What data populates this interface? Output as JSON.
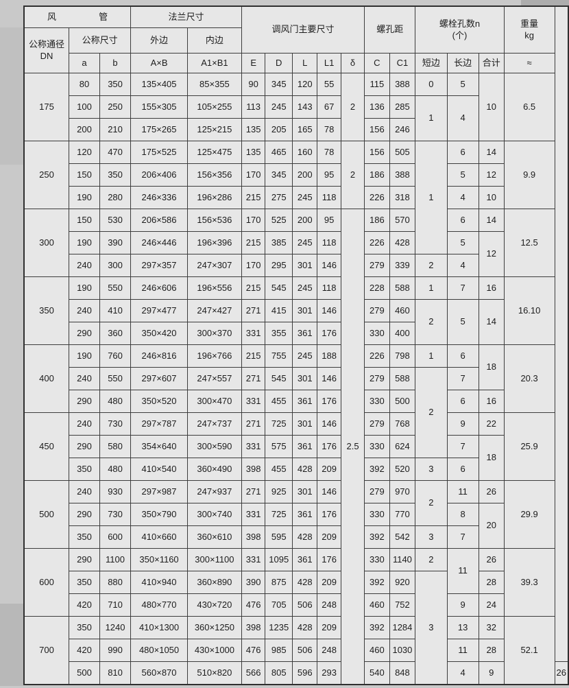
{
  "colors": {
    "page_bg": "#c9c9c9",
    "table_bg": "#e7e7e7",
    "line": "#3c3c3c",
    "text": "#1c1c1c"
  },
  "header": {
    "duct_left": "风",
    "duct_right": "管",
    "flange": "法兰尺寸",
    "damper": "调风门主要尺寸",
    "hole_pitch": "螺孔距",
    "bolt_line1": "螺栓孔数n",
    "bolt_line2": "(个)",
    "weight_line1": "重量",
    "weight_line2": "kg",
    "weight_approx": "≈",
    "dn_line1": "公称通径",
    "dn_line2": "DN",
    "nominal": "公称尺寸",
    "outer": "外边",
    "inner": "内边",
    "col_a": "a",
    "col_b": "b",
    "col_axb": "A×B",
    "col_a1b1": "A1×B1",
    "col_e": "E",
    "col_d": "D",
    "col_l": "L",
    "col_l1": "L1",
    "col_delta": "δ",
    "col_c": "C",
    "col_c1": "C1",
    "col_short": "短边",
    "col_long": "长边",
    "col_total": "合计"
  },
  "groups": [
    {
      "dn": "175",
      "w": "6.5",
      "rows": [
        {
          "a": "80",
          "b": "350",
          "axb": "135×405",
          "a1b1": "85×355",
          "e": "90",
          "d": "345",
          "l": "120",
          "l1": "55",
          "delta": {
            "t": "2",
            "rs": 3
          },
          "c": "115",
          "c1": "388",
          "s": "0",
          "lg": "5",
          "tot": {
            "t": "10",
            "rs": 3
          }
        },
        {
          "a": "100",
          "b": "250",
          "axb": "155×305",
          "a1b1": "105×255",
          "e": "113",
          "d": "245",
          "l": "143",
          "l1": "67",
          "c": "136",
          "c1": "285",
          "s": {
            "t": "1",
            "rs": 2
          },
          "lg": {
            "t": "4",
            "rs": 2
          }
        },
        {
          "a": "200",
          "b": "210",
          "axb": "175×265",
          "a1b1": "125×215",
          "e": "135",
          "d": "205",
          "l": "165",
          "l1": "78",
          "c": "156",
          "c1": "246"
        }
      ]
    },
    {
      "dn": "250",
      "w": "9.9",
      "rows": [
        {
          "a": "120",
          "b": "470",
          "axb": "175×525",
          "a1b1": "125×475",
          "e": "135",
          "d": "465",
          "l": "160",
          "l1": "78",
          "delta": {
            "t": "2",
            "rs": 3
          },
          "c": "156",
          "c1": "505",
          "s": {
            "t": "1",
            "rs": 5
          },
          "lg": "6",
          "tot": "14"
        },
        {
          "a": "150",
          "b": "350",
          "axb": "206×406",
          "a1b1": "156×356",
          "e": "170",
          "d": "345",
          "l": "200",
          "l1": "95",
          "c": "186",
          "c1": "388",
          "lg": "5",
          "tot": "12"
        },
        {
          "a": "190",
          "b": "280",
          "axb": "246×336",
          "a1b1": "196×286",
          "e": "215",
          "d": "275",
          "l": "245",
          "l1": "118",
          "c": "226",
          "c1": "318",
          "lg": "4",
          "tot": "10"
        }
      ]
    },
    {
      "dn": "300",
      "w": "12.5",
      "rows": [
        {
          "a": "150",
          "b": "530",
          "axb": "206×586",
          "a1b1": "156×536",
          "e": "170",
          "d": "525",
          "l": "200",
          "l1": "95",
          "delta": {
            "t": "2.5",
            "rs": 21
          },
          "c": "186",
          "c1": "570",
          "lg": "6",
          "tot": "14"
        },
        {
          "a": "190",
          "b": "390",
          "axb": "246×446",
          "a1b1": "196×396",
          "e": "215",
          "d": "385",
          "l": "245",
          "l1": "118",
          "c": "226",
          "c1": "428",
          "lg": "5",
          "tot": {
            "t": "12",
            "rs": 2
          }
        },
        {
          "a": "240",
          "b": "300",
          "axb": "297×357",
          "a1b1": "247×307",
          "e": "170",
          "d": "295",
          "l": "301",
          "l1": "146",
          "c": "279",
          "c1": "339",
          "s": "2",
          "lg": "4"
        }
      ]
    },
    {
      "dn": "350",
      "w": "16.10",
      "rows": [
        {
          "a": "190",
          "b": "550",
          "axb": "246×606",
          "a1b1": "196×556",
          "e": "215",
          "d": "545",
          "l": "245",
          "l1": "118",
          "c": "228",
          "c1": "588",
          "s": "1",
          "lg": "7",
          "tot": "16"
        },
        {
          "a": "240",
          "b": "410",
          "axb": "297×477",
          "a1b1": "247×427",
          "e": "271",
          "d": "415",
          "l": "301",
          "l1": "146",
          "c": "279",
          "c1": "460",
          "s": {
            "t": "2",
            "rs": 2
          },
          "lg": {
            "t": "5",
            "rs": 2
          },
          "tot": {
            "t": "14",
            "rs": 2
          }
        },
        {
          "a": "290",
          "b": "360",
          "axb": "350×420",
          "a1b1": "300×370",
          "e": "331",
          "d": "355",
          "l": "361",
          "l1": "176",
          "c": "330",
          "c1": "400"
        }
      ]
    },
    {
      "dn": "400",
      "w": "20.3",
      "rows": [
        {
          "a": "190",
          "b": "760",
          "axb": "246×816",
          "a1b1": "196×766",
          "e": "215",
          "d": "755",
          "l": "245",
          "l1": "188",
          "c": "226",
          "c1": "798",
          "s": "1",
          "lg": "6",
          "tot": {
            "t": "18",
            "rs": 2
          }
        },
        {
          "a": "240",
          "b": "550",
          "axb": "297×607",
          "a1b1": "247×557",
          "e": "271",
          "d": "545",
          "l": "301",
          "l1": "146",
          "c": "279",
          "c1": "588",
          "s": {
            "t": "2",
            "rs": 4
          },
          "lg": "7"
        },
        {
          "a": "290",
          "b": "480",
          "axb": "350×520",
          "a1b1": "300×470",
          "e": "331",
          "d": "455",
          "l": "361",
          "l1": "176",
          "c": "330",
          "c1": "500",
          "lg": "6",
          "tot": "16"
        }
      ]
    },
    {
      "dn": "450",
      "w": "25.9",
      "rows": [
        {
          "a": "240",
          "b": "730",
          "axb": "297×787",
          "a1b1": "247×737",
          "e": "271",
          "d": "725",
          "l": "301",
          "l1": "146",
          "c": "279",
          "c1": "768",
          "lg": "9",
          "tot": "22"
        },
        {
          "a": "290",
          "b": "580",
          "axb": "354×640",
          "a1b1": "300×590",
          "e": "331",
          "d": "575",
          "l": "361",
          "l1": "176",
          "c": "330",
          "c1": "624",
          "lg": "7",
          "tot": {
            "t": "18",
            "rs": 2
          }
        },
        {
          "a": "350",
          "b": "480",
          "axb": "410×540",
          "a1b1": "360×490",
          "e": "398",
          "d": "455",
          "l": "428",
          "l1": "209",
          "c": "392",
          "c1": "520",
          "s": "3",
          "lg": "6"
        }
      ]
    },
    {
      "dn": "500",
      "w": "29.9",
      "rows": [
        {
          "a": "240",
          "b": "930",
          "axb": "297×987",
          "a1b1": "247×937",
          "e": "271",
          "d": "925",
          "l": "301",
          "l1": "146",
          "c": "279",
          "c1": "970",
          "s": {
            "t": "2",
            "rs": 2
          },
          "lg": "11",
          "tot": "26"
        },
        {
          "a": "290",
          "b": "730",
          "axb": "350×790",
          "a1b1": "300×740",
          "e": "331",
          "d": "725",
          "l": "361",
          "l1": "176",
          "c": "330",
          "c1": "770",
          "lg": "8",
          "tot": {
            "t": "20",
            "rs": 2
          }
        },
        {
          "a": "350",
          "b": "600",
          "axb": "410×660",
          "a1b1": "360×610",
          "e": "398",
          "d": "595",
          "l": "428",
          "l1": "209",
          "c": "392",
          "c1": "542",
          "s": "3",
          "lg": "7"
        }
      ]
    },
    {
      "dn": "600",
      "w": "39.3",
      "rows": [
        {
          "a": "290",
          "b": "1100",
          "axb": "350×1160",
          "a1b1": "300×1100",
          "e": "331",
          "d": "1095",
          "l": "361",
          "l1": "176",
          "c": "330",
          "c1": "1140",
          "s": "2",
          "lg": {
            "t": "11",
            "rs": 2
          },
          "tot": "26"
        },
        {
          "a": "350",
          "b": "880",
          "axb": "410×940",
          "a1b1": "360×890",
          "e": "390",
          "d": "875",
          "l": "428",
          "l1": "209",
          "c": "392",
          "c1": "920",
          "s": {
            "t": "3",
            "rs": 5
          },
          "tot": "28"
        },
        {
          "a": "420",
          "b": "710",
          "axb": "480×770",
          "a1b1": "430×720",
          "e": "476",
          "d": "705",
          "l": "506",
          "l1": "248",
          "c": "460",
          "c1": "752",
          "lg": "9",
          "tot": "24"
        }
      ]
    },
    {
      "dn": "700",
      "w": "52.1",
      "rows": [
        {
          "a": "350",
          "b": "1240",
          "axb": "410×1300",
          "a1b1": "360×1250",
          "e": "398",
          "d": "1235",
          "l": "428",
          "l1": "209",
          "c": "392",
          "c1": "1284",
          "lg": "13",
          "tot": "32"
        },
        {
          "a": "420",
          "b": "990",
          "axb": "480×1050",
          "a1b1": "430×1000",
          "e": "476",
          "d": "985",
          "l": "506",
          "l1": "248",
          "c": "460",
          "c1": "1030",
          "lg": "11",
          "tot": "28"
        },
        {
          "a": "500",
          "b": "810",
          "axb": "560×870",
          "a1b1": "510×820",
          "e": "566",
          "d": "805",
          "l": "596",
          "l1": "293",
          "c": "540",
          "c1": "848",
          "s": "4",
          "lg": "9",
          "tot": "26"
        }
      ]
    }
  ]
}
